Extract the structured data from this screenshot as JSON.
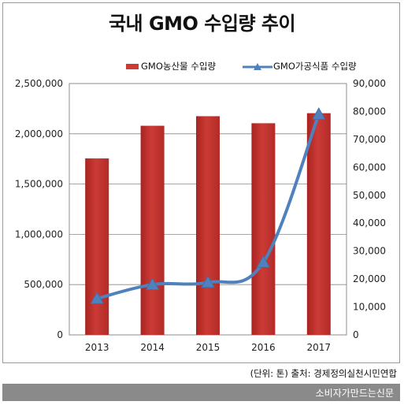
{
  "header": {
    "title": "국내 GMO 수입량 추이"
  },
  "source_note": "(단위: 톤) 출처: 경제정의실천시민연합",
  "footer": {
    "brand": "소비자가만드는신문"
  },
  "colors": {
    "bar": "#cc3b36",
    "line": "#4f81bd",
    "grid": "#888888"
  },
  "chart_data": {
    "type": "bar",
    "title": "국내 GMO 수입량 추이",
    "categories": [
      "2013",
      "2014",
      "2015",
      "2016",
      "2017"
    ],
    "series": [
      {
        "name": "GMO농산물 수입량",
        "type": "bar",
        "axis": "left",
        "values": [
          1755000,
          2080000,
          2175000,
          2105000,
          2205000
        ]
      },
      {
        "name": "GMO가공식품 수입량",
        "type": "line",
        "axis": "right",
        "marker": "triangle",
        "values": [
          13000,
          18000,
          18800,
          26000,
          79000
        ]
      }
    ],
    "ylim_left": [
      0,
      2500000
    ],
    "ylim_right": [
      0,
      90000
    ],
    "yticks_left": [
      "0",
      "500,000",
      "1,000,000",
      "1,500,000",
      "2,000,000",
      "2,500,000"
    ],
    "yticks_right": [
      "0",
      "10,000",
      "20,000",
      "30,000",
      "40,000",
      "50,000",
      "60,000",
      "70,000",
      "80,000",
      "90,000"
    ],
    "grid": "horizontal",
    "legend_position": "top"
  }
}
